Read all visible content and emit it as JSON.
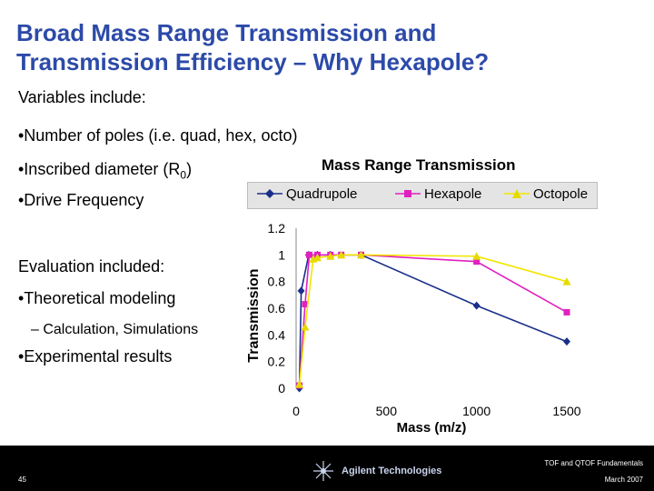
{
  "slide": {
    "title_line1": "Broad Mass Range Transmission and",
    "title_line2": "Transmission Efficiency – Why Hexapole?",
    "variables_heading": "Variables include:",
    "variables": [
      "•Number of poles (i.e. quad, hex, octo)",
      "•Inscribed diameter (R",
      "•Drive Frequency"
    ],
    "r_subscript": "0",
    "r_close": ")",
    "evaluation_heading": "Evaluation included:",
    "evaluation_item1": "•Theoretical modeling",
    "evaluation_sub": "–  Calculation, Simulations",
    "evaluation_item2": "•Experimental results"
  },
  "footer": {
    "page_number": "45",
    "right_top": "TOF and QTOF Fundamentals",
    "right_bottom": "March 2007",
    "logo_text": "Agilent Technologies"
  },
  "colors": {
    "title": "#2c4aa8",
    "quadrupole": "#1a2f8a",
    "hexapole": "#e020c0",
    "octopole": "#f2e600",
    "octopole_marker": "#e6da00"
  },
  "chart_data": {
    "type": "line",
    "title": "Mass Range Transmission",
    "xlabel": "Mass (m/z)",
    "ylabel": "Transmission",
    "xlim": [
      0,
      1500
    ],
    "ylim": [
      0,
      1.2
    ],
    "x_ticks": [
      "0",
      "500",
      "1000",
      "1500"
    ],
    "y_ticks": [
      "0",
      "0.2",
      "0.4",
      "0.6",
      "0.8",
      "1",
      "1.2"
    ],
    "legend_position": "top",
    "series": [
      {
        "name": "Quadrupole",
        "x": [
          18,
          28,
          70,
          118,
          190,
          360,
          1000,
          1500
        ],
        "y": [
          0.0,
          0.73,
          1.0,
          1.0,
          1.0,
          1.0,
          0.62,
          0.35
        ]
      },
      {
        "name": "Hexapole",
        "x": [
          18,
          50,
          73,
          118,
          190,
          250,
          360,
          1000,
          1500
        ],
        "y": [
          0.02,
          0.63,
          1.0,
          1.0,
          1.0,
          1.0,
          1.0,
          0.95,
          0.57
        ]
      },
      {
        "name": "Octopole",
        "x": [
          18,
          50,
          95,
          118,
          190,
          250,
          360,
          1000,
          1500
        ],
        "y": [
          0.03,
          0.46,
          0.97,
          0.98,
          0.99,
          1.0,
          1.0,
          0.99,
          0.8
        ]
      }
    ]
  }
}
